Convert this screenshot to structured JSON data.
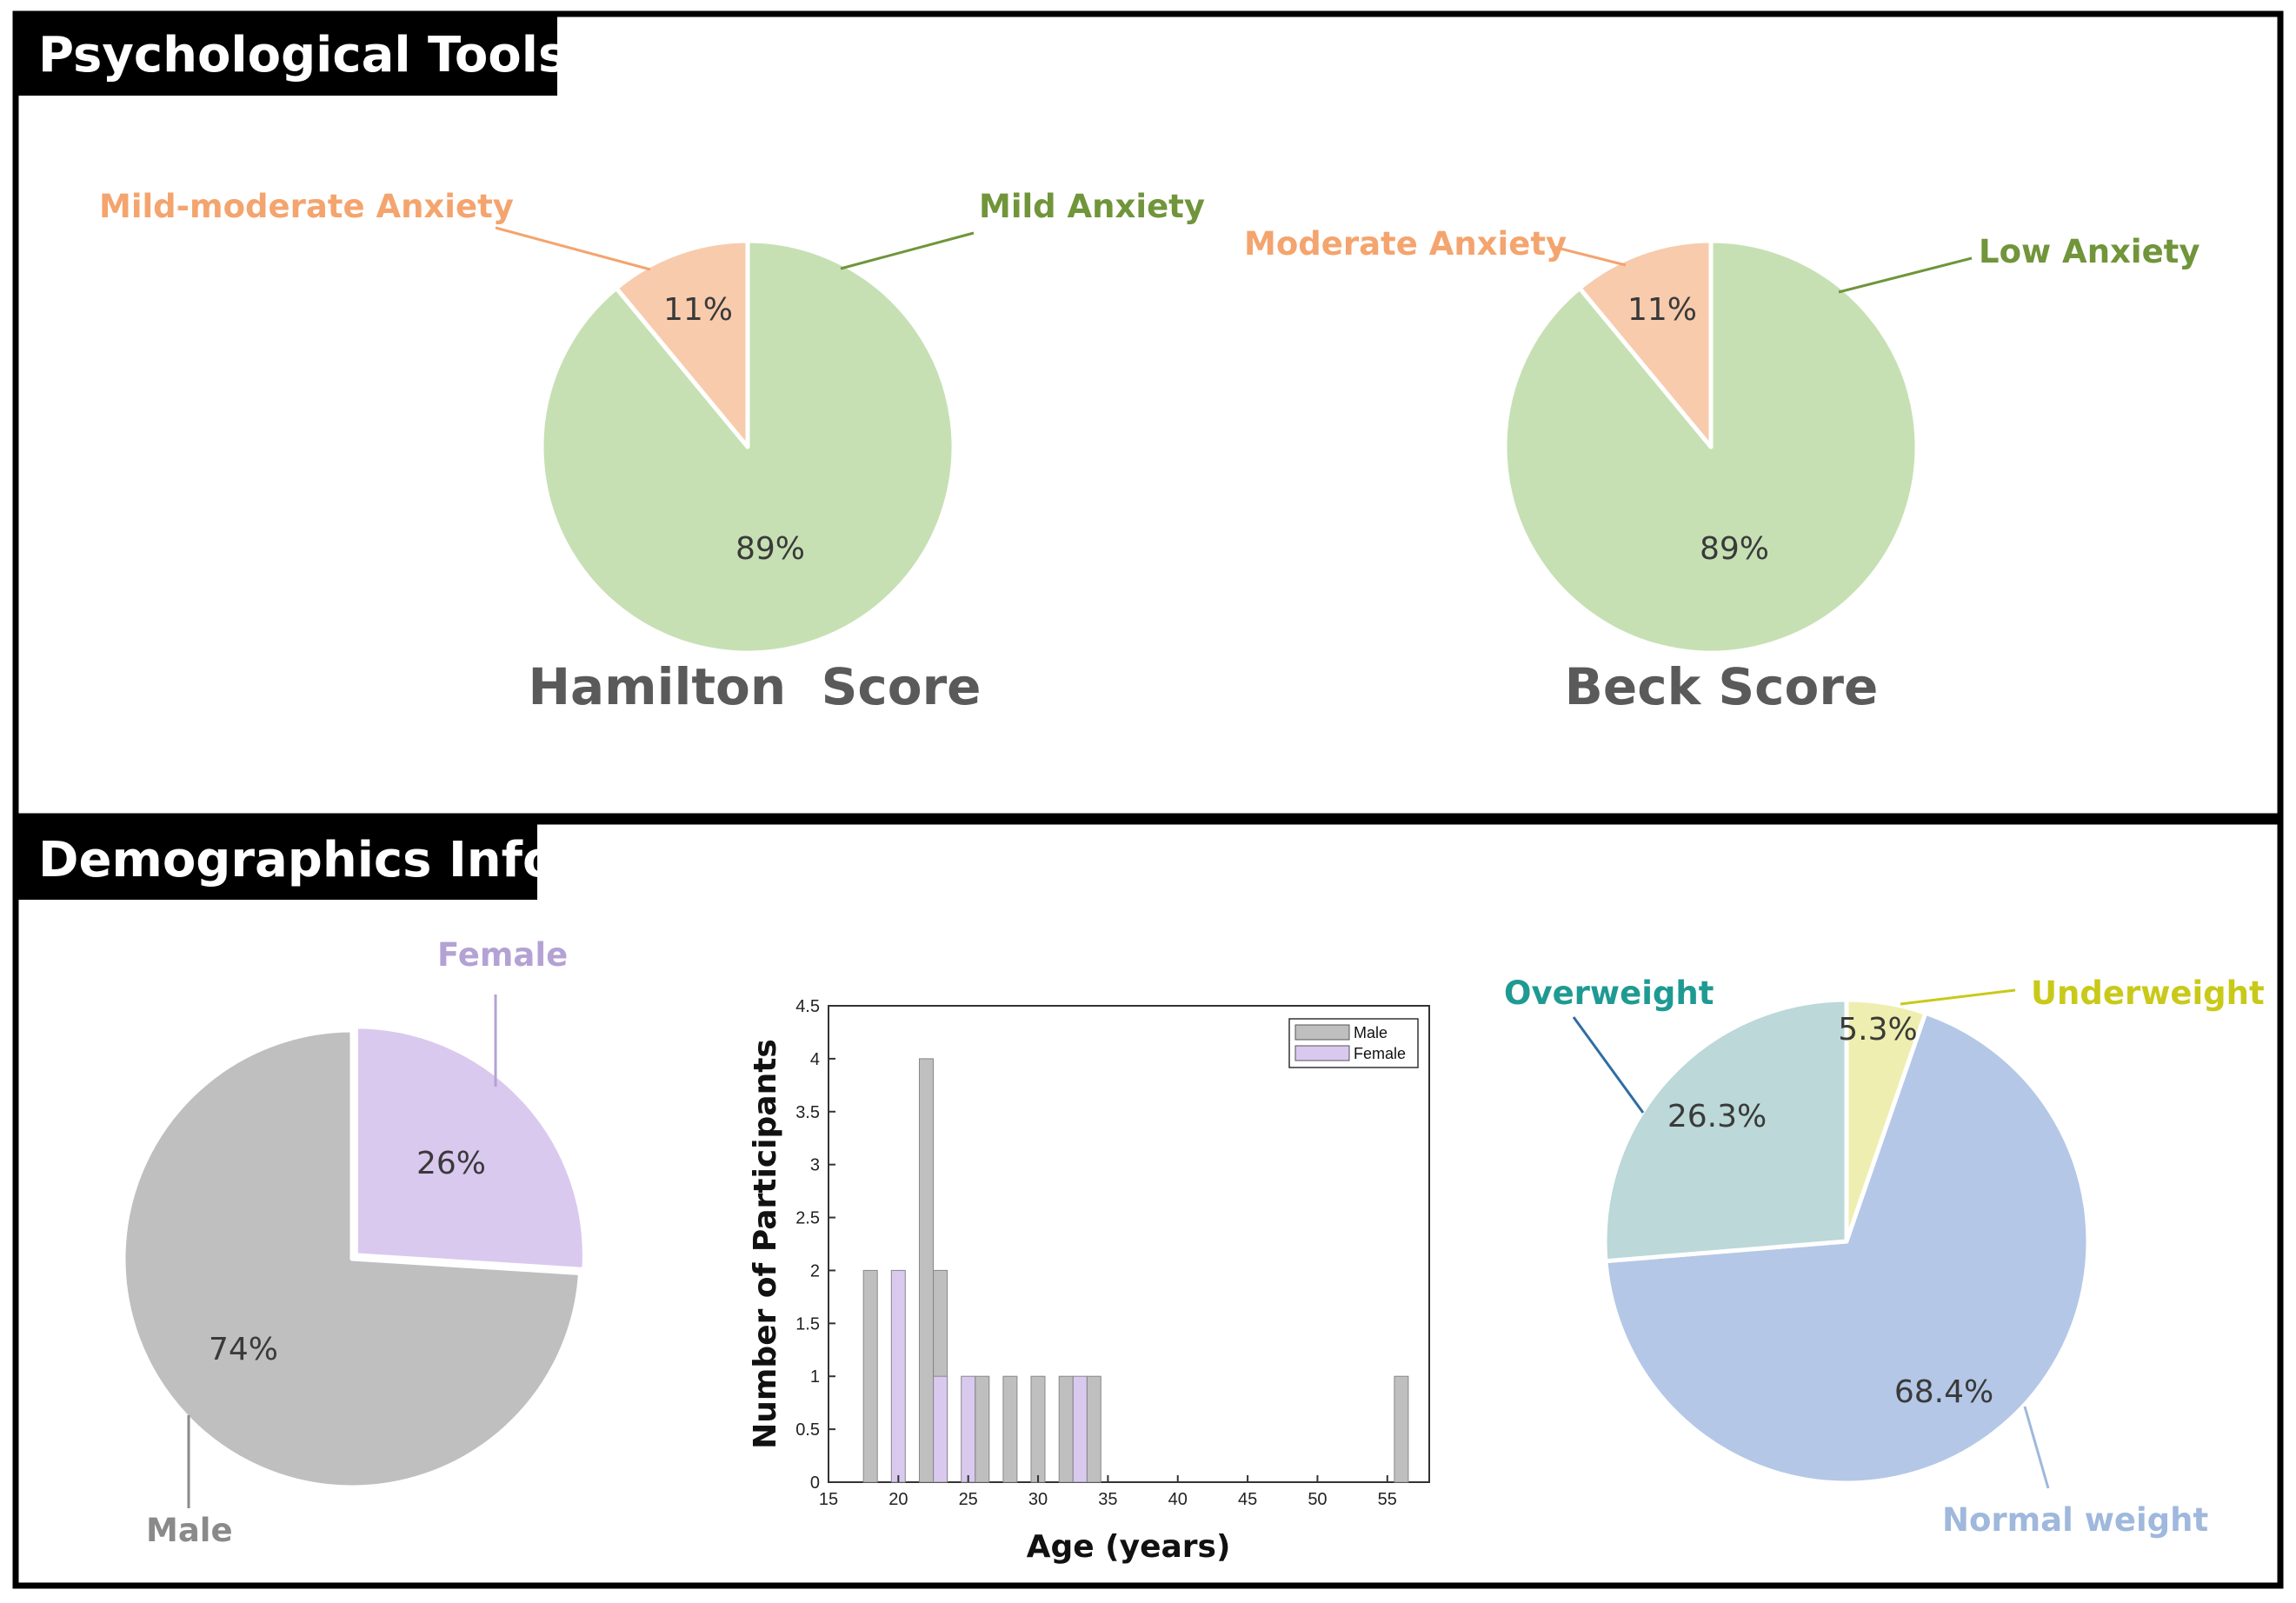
{
  "sections": {
    "psychological": "Psychological Tools",
    "demographics": "Demographics Info"
  },
  "colors": {
    "green_fill": "#c6e0b4",
    "green_text": "#70953a",
    "salmon_fill": "#f8cbad",
    "salmon_text": "#f4a46e",
    "gray_fill": "#bfbfbf",
    "gray_text": "#8a8a8a",
    "purple_fill": "#d9c9ef",
    "purple_text": "#b4a2d4",
    "teal_fill": "#bcd8d8",
    "teal_text": "#1f9a93",
    "blue_fill": "#b4c7e7",
    "blue_text": "#9fb8dc",
    "yellow_fill": "#eeeeb0",
    "yellow_text": "#c9c91a"
  },
  "chart_data": [
    {
      "id": "hamilton",
      "type": "pie",
      "title": "Hamilton  Score",
      "slices": [
        {
          "label": "Mild Anxiety",
          "value": 89,
          "pct_label": "89%",
          "color": "#c6e0b4",
          "label_color": "#70953a"
        },
        {
          "label": "Mild-moderate Anxiety",
          "value": 11,
          "pct_label": "11%",
          "color": "#f8cbad",
          "label_color": "#f4a46e"
        }
      ]
    },
    {
      "id": "beck",
      "type": "pie",
      "title": "Beck Score",
      "slices": [
        {
          "label": "Low Anxiety",
          "value": 89,
          "pct_label": "89%",
          "color": "#c6e0b4",
          "label_color": "#70953a"
        },
        {
          "label": "Moderate Anxiety",
          "value": 11,
          "pct_label": "11%",
          "color": "#f8cbad",
          "label_color": "#f4a46e"
        }
      ]
    },
    {
      "id": "gender",
      "type": "pie",
      "title": "",
      "slices": [
        {
          "label": "Female",
          "value": 26,
          "pct_label": "26%",
          "color": "#d9c9ef",
          "label_color": "#b4a2d4"
        },
        {
          "label": "Male",
          "value": 74,
          "pct_label": "74%",
          "color": "#bfbfbf",
          "label_color": "#8a8a8a"
        }
      ]
    },
    {
      "id": "age",
      "type": "bar",
      "title": "",
      "xlabel": "Age (years)",
      "ylabel": "Number of Participants",
      "xlim": [
        15,
        58
      ],
      "ylim": [
        0,
        4.5
      ],
      "xticks": [
        "15",
        "20",
        "25",
        "30",
        "35",
        "40",
        "45",
        "50",
        "55"
      ],
      "yticks": [
        "0",
        "0.5",
        "1",
        "1.5",
        "2",
        "2.5",
        "3",
        "3.5",
        "4",
        "4.5"
      ],
      "legend": [
        "Male",
        "Female"
      ],
      "series": [
        {
          "name": "Male",
          "color": "#bfbfbf",
          "x": [
            18,
            22,
            23,
            26,
            28,
            30,
            32,
            34,
            56
          ],
          "values": [
            2,
            4,
            2,
            1,
            1,
            1,
            1,
            1,
            1
          ]
        },
        {
          "name": "Female",
          "color": "#d9c9ef",
          "x": [
            20,
            23,
            25,
            33
          ],
          "values": [
            2,
            1,
            1,
            1
          ]
        }
      ]
    },
    {
      "id": "weight",
      "type": "pie",
      "title": "",
      "slices": [
        {
          "label": "Underweight",
          "value": 5.3,
          "pct_label": "5.3%",
          "color": "#eeeeb0",
          "label_color": "#c9c91a"
        },
        {
          "label": "Normal weight",
          "value": 68.4,
          "pct_label": "68.4%",
          "color": "#b4c7e7",
          "label_color": "#9fb8dc"
        },
        {
          "label": "Overweight",
          "value": 26.3,
          "pct_label": "26.3%",
          "color": "#bcd8d8",
          "label_color": "#1f9a93"
        }
      ]
    }
  ]
}
